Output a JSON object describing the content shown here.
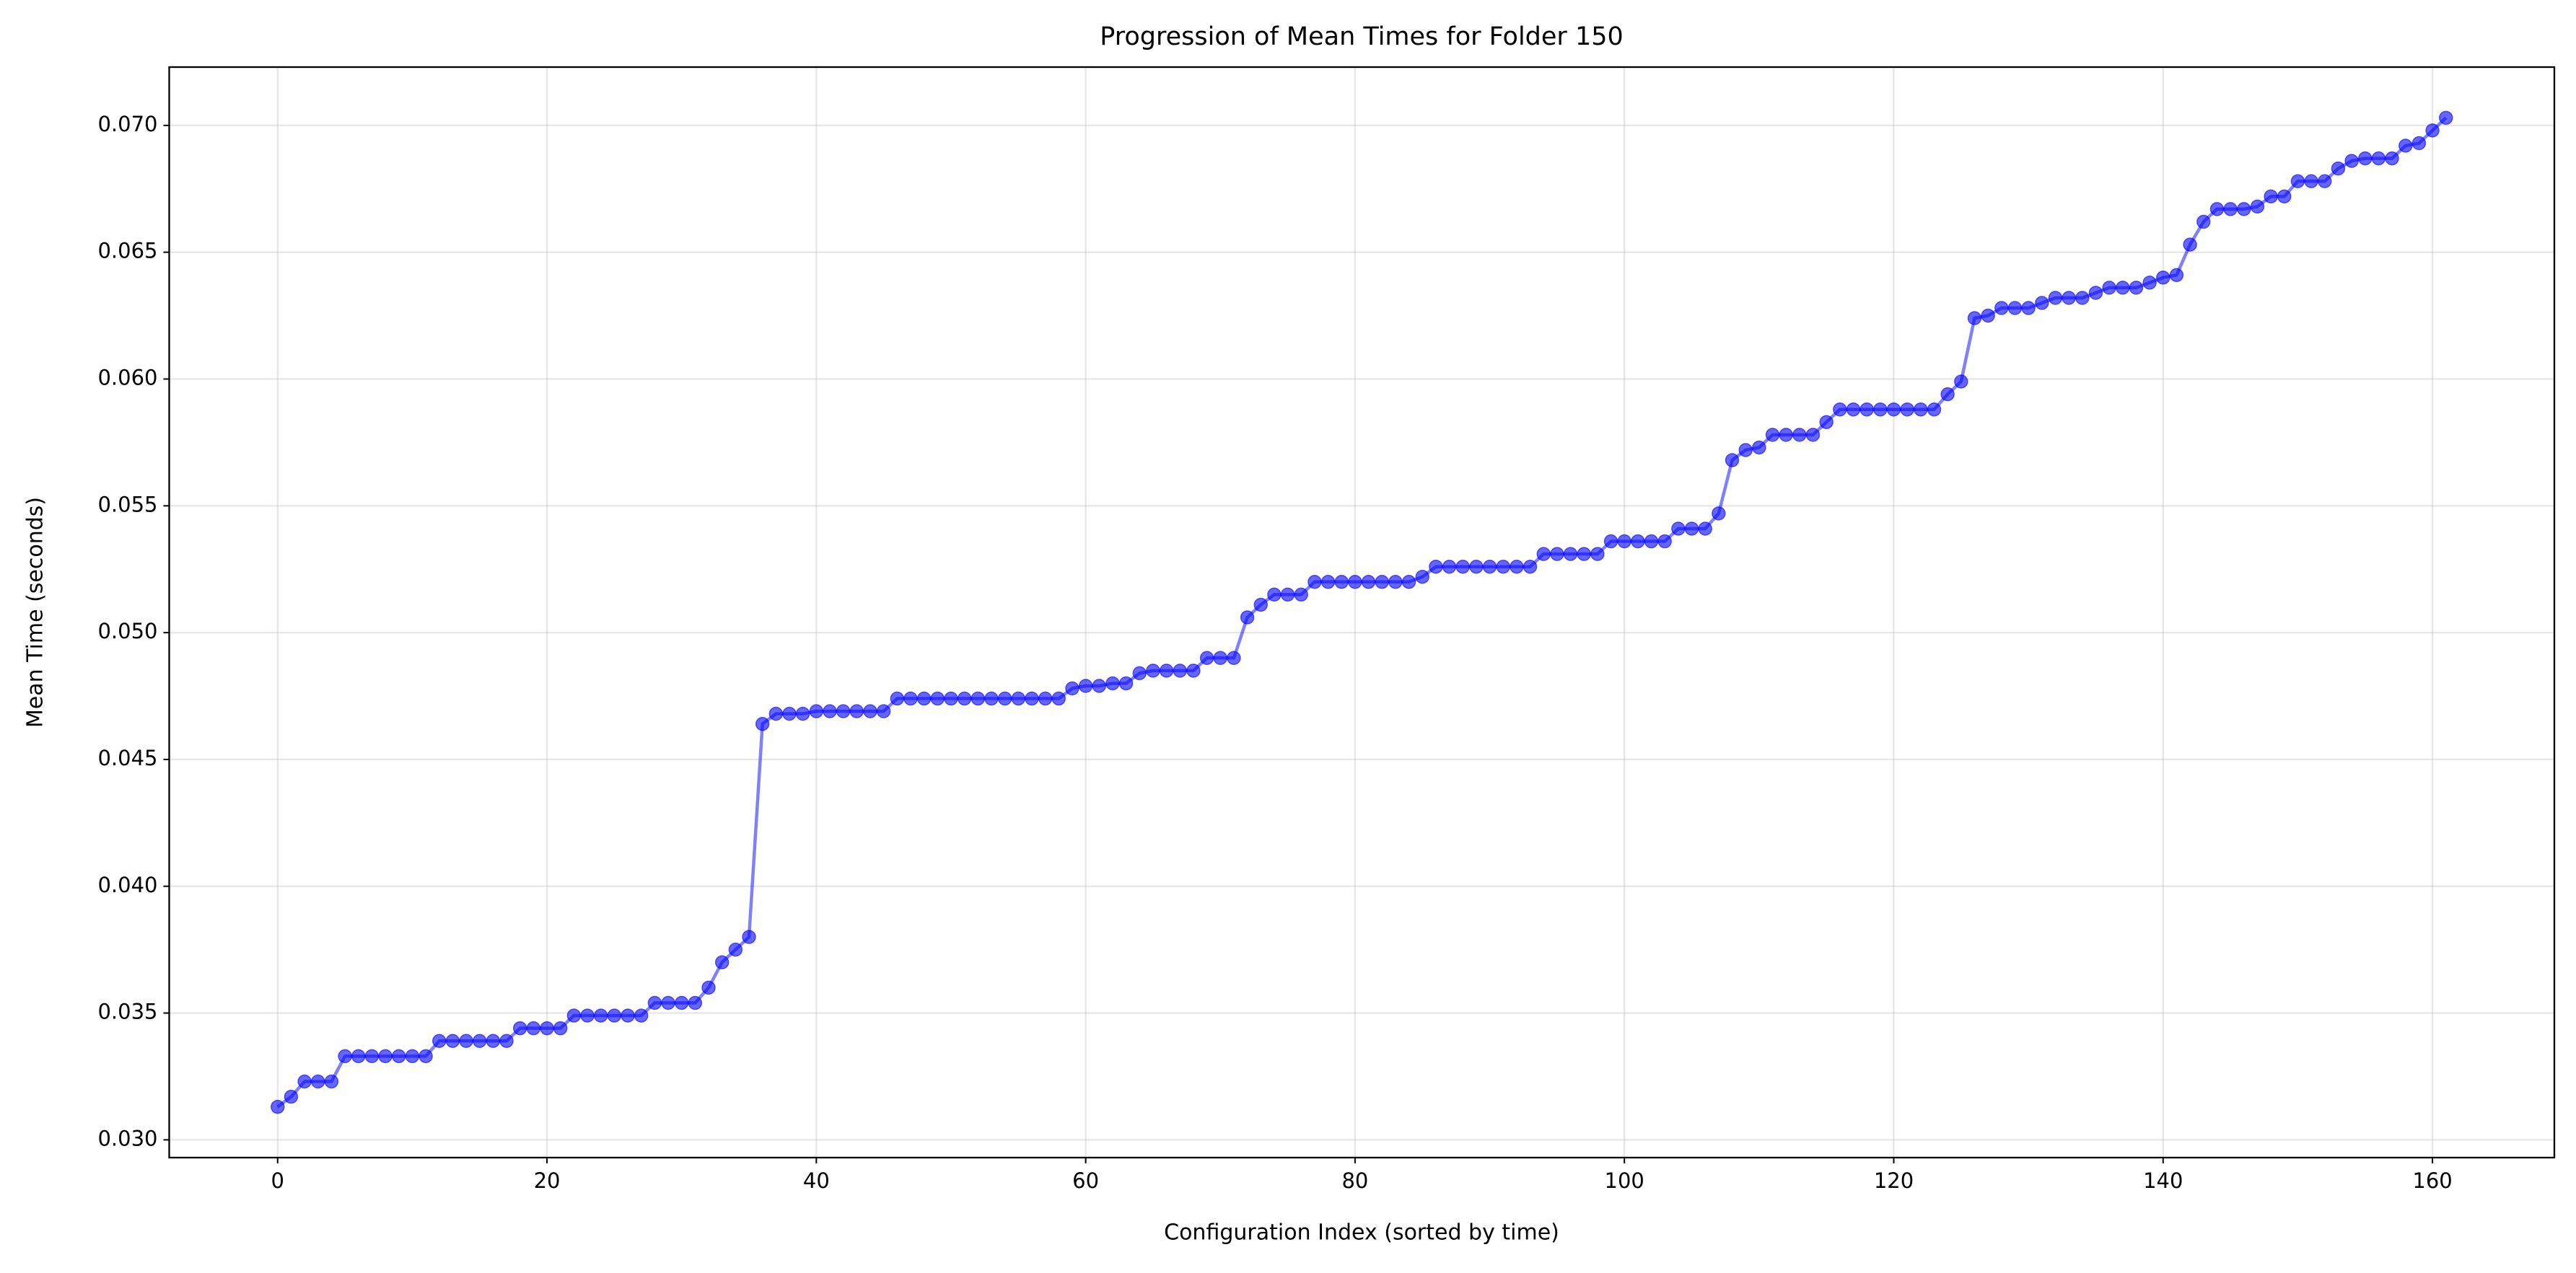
{
  "chart_data": {
    "type": "line",
    "title": "Progression of Mean Times for Folder 150",
    "x_label": "Configuration Index (sorted by time)",
    "y_label": "Mean Time (seconds)",
    "x": [
      0,
      1,
      2,
      3,
      4,
      5,
      6,
      7,
      8,
      9,
      10,
      11,
      12,
      13,
      14,
      15,
      16,
      17,
      18,
      19,
      20,
      21,
      22,
      23,
      24,
      25,
      26,
      27,
      28,
      29,
      30,
      31,
      32,
      33,
      34,
      35,
      36,
      37,
      38,
      39,
      40,
      41,
      42,
      43,
      44,
      45,
      46,
      47,
      48,
      49,
      50,
      51,
      52,
      53,
      54,
      55,
      56,
      57,
      58,
      59,
      60,
      61,
      62,
      63,
      64,
      65,
      66,
      67,
      68,
      69,
      70,
      71,
      72,
      73,
      74,
      75,
      76,
      77,
      78,
      79,
      80,
      81,
      82,
      83,
      84,
      85,
      86,
      87,
      88,
      89,
      90,
      91,
      92,
      93,
      94,
      95,
      96,
      97,
      98,
      99,
      100,
      101,
      102,
      103,
      104,
      105,
      106,
      107,
      108,
      109,
      110,
      111,
      112,
      113,
      114,
      115,
      116,
      117,
      118,
      119,
      120,
      121,
      122,
      123,
      124,
      125,
      126,
      127,
      128,
      129,
      130,
      131,
      132,
      133,
      134,
      135,
      136,
      137,
      138,
      139,
      140,
      141,
      142,
      143,
      144,
      145,
      146,
      147,
      148,
      149,
      150,
      151,
      152,
      153,
      154,
      155,
      156,
      157,
      158,
      159,
      160,
      161
    ],
    "series": [
      {
        "color": "#0000ff",
        "values": [
          0.0313,
          0.0317,
          0.0323,
          0.0323,
          0.0323,
          0.0333,
          0.0333,
          0.0333,
          0.0333,
          0.0333,
          0.0333,
          0.0333,
          0.0339,
          0.0339,
          0.0339,
          0.0339,
          0.0339,
          0.0339,
          0.0344,
          0.0344,
          0.0344,
          0.0344,
          0.0349,
          0.0349,
          0.0349,
          0.0349,
          0.0349,
          0.0349,
          0.0354,
          0.0354,
          0.0354,
          0.0354,
          0.036,
          0.037,
          0.0375,
          0.038,
          0.0464,
          0.0468,
          0.0468,
          0.0468,
          0.0469,
          0.0469,
          0.0469,
          0.0469,
          0.0469,
          0.0469,
          0.0474,
          0.0474,
          0.0474,
          0.0474,
          0.0474,
          0.0474,
          0.0474,
          0.0474,
          0.0474,
          0.0474,
          0.0474,
          0.0474,
          0.0474,
          0.0478,
          0.0479,
          0.0479,
          0.048,
          0.048,
          0.0484,
          0.0485,
          0.0485,
          0.0485,
          0.0485,
          0.049,
          0.049,
          0.049,
          0.0506,
          0.0511,
          0.0515,
          0.0515,
          0.0515,
          0.052,
          0.052,
          0.052,
          0.052,
          0.052,
          0.052,
          0.052,
          0.052,
          0.0522,
          0.0526,
          0.0526,
          0.0526,
          0.0526,
          0.0526,
          0.0526,
          0.0526,
          0.0526,
          0.0531,
          0.0531,
          0.0531,
          0.0531,
          0.0531,
          0.0536,
          0.0536,
          0.0536,
          0.0536,
          0.0536,
          0.0541,
          0.0541,
          0.0541,
          0.0547,
          0.0568,
          0.0572,
          0.0573,
          0.0578,
          0.0578,
          0.0578,
          0.0578,
          0.0583,
          0.0588,
          0.0588,
          0.0588,
          0.0588,
          0.0588,
          0.0588,
          0.0588,
          0.0588,
          0.0594,
          0.0599,
          0.0624,
          0.0625,
          0.0628,
          0.0628,
          0.0628,
          0.063,
          0.0632,
          0.0632,
          0.0632,
          0.0634,
          0.0636,
          0.0636,
          0.0636,
          0.0638,
          0.064,
          0.0641,
          0.0653,
          0.0662,
          0.0667,
          0.0667,
          0.0667,
          0.0668,
          0.0672,
          0.0672,
          0.0678,
          0.0678,
          0.0678,
          0.0683,
          0.0686,
          0.0687,
          0.0687,
          0.0687,
          0.0692,
          0.0693,
          0.0698,
          0.0703
        ]
      }
    ],
    "xlim": [
      -8.05,
      169.05
    ],
    "ylim": [
      0.0293,
      0.0723
    ],
    "xticks": [
      0,
      20,
      40,
      60,
      80,
      100,
      120,
      140,
      160
    ],
    "yticks": [
      {
        "value": 0.03,
        "label": "0.030"
      },
      0.035,
      {
        "value": 0.04,
        "label": "0.040"
      },
      0.045,
      {
        "value": 0.05,
        "label": "0.050"
      },
      0.055,
      {
        "value": 0.06,
        "label": "0.060"
      },
      0.065,
      {
        "value": 0.07,
        "label": "0.070"
      }
    ],
    "grid": true
  }
}
